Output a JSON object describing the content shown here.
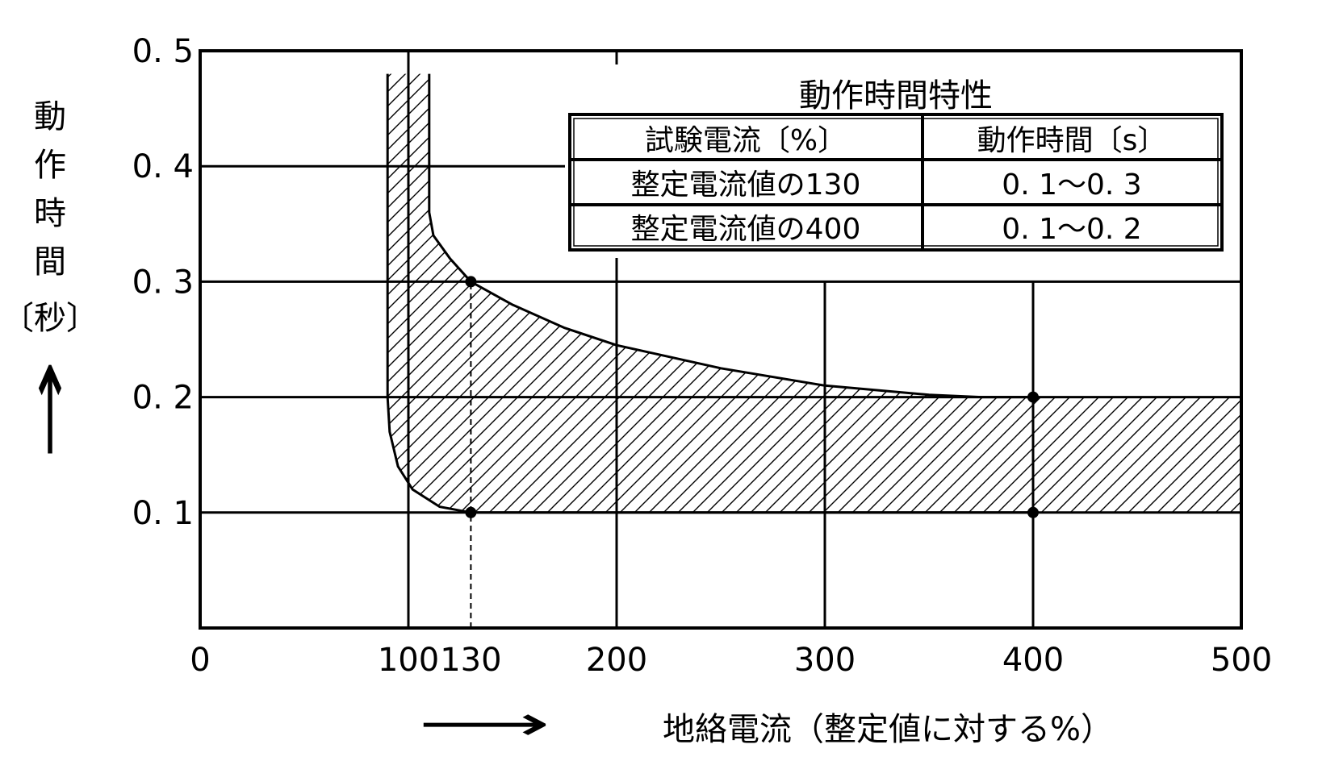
{
  "chart_data": {
    "type": "area",
    "xlabel": "地絡電流（整定値に対する%）",
    "xlabel_arrow": "⟶",
    "ylabel_chars": [
      "動",
      "作",
      "時",
      "間",
      "〔秒〕"
    ],
    "ylabel_arrow": "↑",
    "xlim": [
      0,
      500
    ],
    "ylim": [
      0,
      0.5
    ],
    "x_ticks": [
      {
        "value": 0,
        "label": "0"
      },
      {
        "value": 100,
        "label": "100"
      },
      {
        "value": 130,
        "label": "130"
      },
      {
        "value": 200,
        "label": "200"
      },
      {
        "value": 300,
        "label": "300"
      },
      {
        "value": 400,
        "label": "400"
      },
      {
        "value": 500,
        "label": "500"
      }
    ],
    "y_ticks": [
      {
        "value": 0.1,
        "label": "0. 1"
      },
      {
        "value": 0.2,
        "label": "0. 2"
      },
      {
        "value": 0.3,
        "label": "0. 3"
      },
      {
        "value": 0.4,
        "label": "0. 4"
      },
      {
        "value": 0.5,
        "label": "0. 5"
      }
    ],
    "grid": true,
    "region": {
      "fill": "hatched",
      "upper_boundary": [
        [
          110,
          0.48
        ],
        [
          110,
          0.36
        ],
        [
          112,
          0.34
        ],
        [
          120,
          0.32
        ],
        [
          130,
          0.3
        ],
        [
          150,
          0.28
        ],
        [
          175,
          0.26
        ],
        [
          200,
          0.245
        ],
        [
          250,
          0.225
        ],
        [
          300,
          0.21
        ],
        [
          350,
          0.202
        ],
        [
          375,
          0.2
        ],
        [
          400,
          0.2
        ],
        [
          500,
          0.2
        ]
      ],
      "lower_boundary": [
        [
          90,
          0.48
        ],
        [
          90,
          0.2
        ],
        [
          91,
          0.17
        ],
        [
          95,
          0.14
        ],
        [
          102,
          0.12
        ],
        [
          115,
          0.105
        ],
        [
          130,
          0.1
        ],
        [
          200,
          0.1
        ],
        [
          300,
          0.1
        ],
        [
          400,
          0.1
        ],
        [
          500,
          0.1
        ]
      ]
    },
    "points": [
      {
        "x": 130,
        "y": 0.3
      },
      {
        "x": 130,
        "y": 0.1
      },
      {
        "x": 400,
        "y": 0.2
      },
      {
        "x": 400,
        "y": 0.1
      }
    ],
    "dashed_guide": {
      "x": 130,
      "y_from": 0,
      "y_to": 0.3
    },
    "table": {
      "title": "動作時間特性",
      "headers": [
        "試験電流〔%〕",
        "動作時間〔s〕"
      ],
      "rows": [
        [
          "整定電流値の130",
          "0. 1～0. 3"
        ],
        [
          "整定電流値の400",
          "0. 1～0. 2"
        ]
      ]
    }
  }
}
